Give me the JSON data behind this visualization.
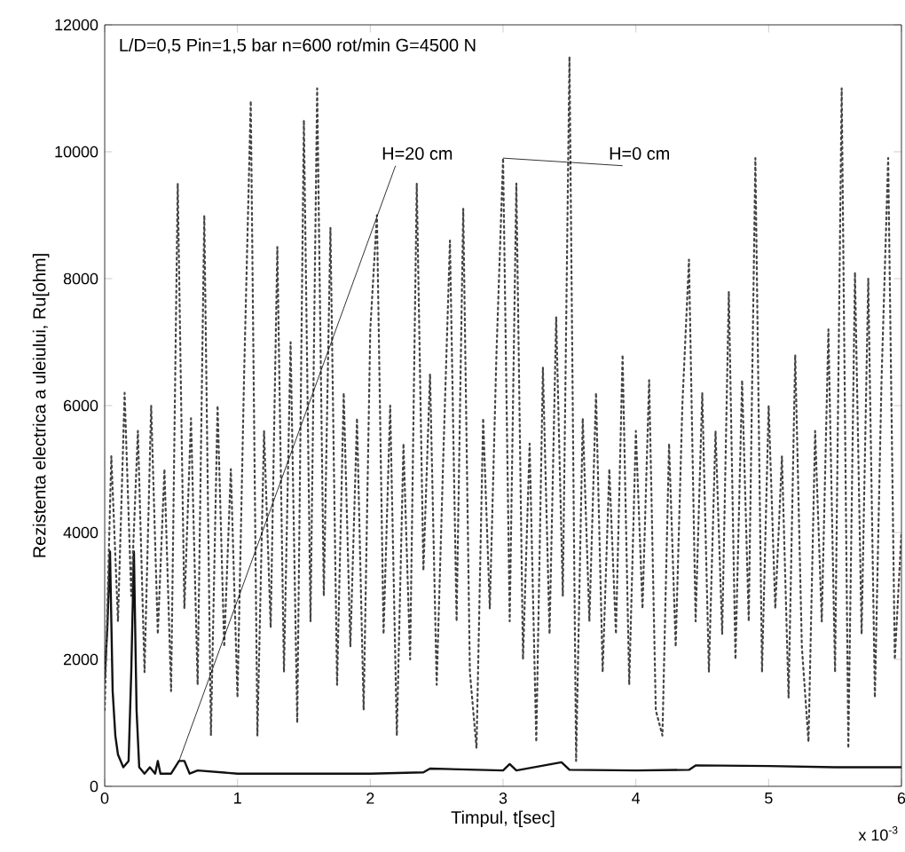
{
  "chart_data": {
    "type": "line",
    "title": "L/D=0,5  Pin=1,5 bar  n=600 rot/min  G=4500 N",
    "xlabel": "Timpul, t[sec]",
    "ylabel": "Rezistenta electrica a uleiului, Ru[ohm]",
    "annotations": [
      "x 10$^{-3}$"
    ],
    "xlim": [
      0,
      6
    ],
    "xticks": [
      0,
      1,
      2,
      3,
      4,
      5,
      6
    ],
    "ylim": [
      0,
      12000
    ],
    "yticks": [
      0,
      2000,
      4000,
      6000,
      8000,
      10000,
      12000
    ],
    "grid": false,
    "legend": false,
    "marker": "none",
    "series": [
      {
        "name": "H=20 cm",
        "color": "#111111",
        "line_style": "solid",
        "x": [
          0,
          0.02,
          0.04,
          0.06,
          0.08,
          0.1,
          0.14,
          0.18,
          0.2,
          0.22,
          0.24,
          0.26,
          0.3,
          0.34,
          0.38,
          0.4,
          0.42,
          0.5,
          0.56,
          0.6,
          0.64,
          0.7,
          1.0,
          1.5,
          2.0,
          2.4,
          2.45,
          3.0,
          3.05,
          3.1,
          3.44,
          3.5,
          4.0,
          4.4,
          4.45,
          5.0,
          5.5,
          6.0
        ],
        "values": [
          1700,
          2500,
          3700,
          1500,
          800,
          500,
          300,
          400,
          1800,
          3700,
          1200,
          300,
          200,
          300,
          200,
          400,
          200,
          200,
          400,
          400,
          200,
          250,
          200,
          200,
          200,
          220,
          280,
          250,
          350,
          250,
          380,
          260,
          250,
          260,
          330,
          320,
          300,
          300
        ]
      },
      {
        "name": "H=0 cm",
        "color": "#444444",
        "line_style": "dotted",
        "x": [
          0.0,
          0.05,
          0.1,
          0.15,
          0.2,
          0.25,
          0.3,
          0.35,
          0.4,
          0.45,
          0.5,
          0.55,
          0.6,
          0.65,
          0.7,
          0.75,
          0.8,
          0.85,
          0.9,
          0.95,
          1.0,
          1.05,
          1.1,
          1.15,
          1.2,
          1.25,
          1.3,
          1.35,
          1.4,
          1.45,
          1.5,
          1.55,
          1.6,
          1.65,
          1.7,
          1.75,
          1.8,
          1.85,
          1.9,
          1.95,
          2.0,
          2.05,
          2.1,
          2.15,
          2.2,
          2.25,
          2.3,
          2.35,
          2.4,
          2.45,
          2.5,
          2.55,
          2.6,
          2.65,
          2.7,
          2.75,
          2.8,
          2.85,
          2.9,
          2.95,
          3.0,
          3.05,
          3.1,
          3.15,
          3.2,
          3.25,
          3.3,
          3.35,
          3.4,
          3.45,
          3.5,
          3.55,
          3.6,
          3.65,
          3.7,
          3.75,
          3.8,
          3.85,
          3.9,
          3.95,
          4.0,
          4.05,
          4.1,
          4.15,
          4.2,
          4.25,
          4.3,
          4.35,
          4.4,
          4.45,
          4.5,
          4.55,
          4.6,
          4.65,
          4.7,
          4.75,
          4.8,
          4.85,
          4.9,
          4.95,
          5.0,
          5.05,
          5.1,
          5.15,
          5.2,
          5.25,
          5.3,
          5.35,
          5.4,
          5.45,
          5.5,
          5.55,
          5.6,
          5.65,
          5.7,
          5.75,
          5.8,
          5.85,
          5.9,
          5.95,
          6.0
        ],
        "values": [
          1200,
          5200,
          2600,
          6200,
          3000,
          5600,
          1800,
          6000,
          2400,
          5000,
          1500,
          9500,
          2800,
          5800,
          1600,
          9000,
          800,
          6000,
          2200,
          5000,
          1400,
          6500,
          10800,
          800,
          5600,
          2500,
          8500,
          1800,
          7000,
          1000,
          10500,
          2600,
          11000,
          3000,
          8800,
          1600,
          6200,
          2200,
          5800,
          1200,
          7200,
          9000,
          2400,
          6000,
          800,
          5400,
          2000,
          9500,
          3400,
          6500,
          1600,
          5200,
          8600,
          2600,
          9100,
          1800,
          600,
          5800,
          2800,
          6800,
          9900,
          2600,
          9500,
          2000,
          5400,
          700,
          6600,
          2400,
          7400,
          3000,
          11500,
          400,
          5800,
          2600,
          6200,
          1800,
          5000,
          2400,
          6800,
          1600,
          5600,
          2800,
          6400,
          1200,
          800,
          5400,
          2200,
          6000,
          8300,
          2600,
          6200,
          1800,
          5600,
          2400,
          7800,
          2000,
          6400,
          2600,
          9900,
          1800,
          6000,
          2800,
          5200,
          1400,
          6800,
          2200,
          700,
          5600,
          2600,
          7200,
          1800,
          11000,
          600,
          8100,
          2400,
          8000,
          1400,
          6400,
          9900,
          2000,
          4000
        ]
      }
    ]
  }
}
